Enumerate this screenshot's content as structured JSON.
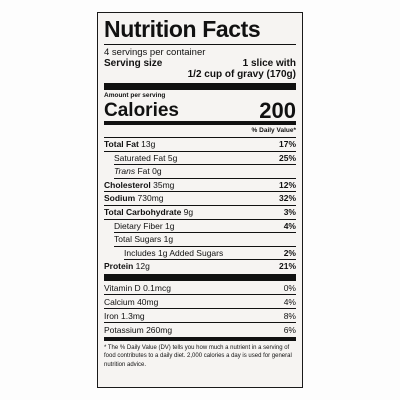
{
  "label": {
    "title": "Nutrition Facts",
    "servings": "4 servings per container",
    "serving_size_label": "Serving size",
    "serving_size_lines": [
      "1 slice with",
      "1/2 cup of gravy (170g)"
    ],
    "amount_per_serving": "Amount per serving",
    "calories_label": "Calories",
    "calories": 200,
    "dv_header": "% Daily Value*",
    "rows": [
      {
        "name": "Total Fat",
        "amount": "13g",
        "dv": "17%",
        "bold": true,
        "indent": 0
      },
      {
        "name": "Saturated Fat",
        "amount": "5g",
        "dv": "25%",
        "bold": false,
        "indent": 1
      },
      {
        "italic": "Trans",
        "name": "Fat",
        "amount": "0g",
        "bold": false,
        "indent": 1
      },
      {
        "name": "Cholesterol",
        "amount": "35mg",
        "dv": "12%",
        "bold": true,
        "indent": 0
      },
      {
        "name": "Sodium",
        "amount": "730mg",
        "dv": "32%",
        "bold": true,
        "indent": 0
      },
      {
        "name": "Total Carbohydrate",
        "amount": "9g",
        "dv": "3%",
        "bold": true,
        "indent": 0
      },
      {
        "name": "Dietary Fiber",
        "amount": "1g",
        "dv": "4%",
        "bold": false,
        "indent": 1
      },
      {
        "name": "Total Sugars",
        "amount": "1g",
        "bold": false,
        "indent": 1
      },
      {
        "name": "Includes 1g Added Sugars",
        "dv": "2%",
        "bold": false,
        "indent": 2
      },
      {
        "name": "Protein",
        "amount": "12g",
        "dv": "21%",
        "bold": true,
        "indent": 0
      }
    ],
    "vitamins": [
      {
        "name": "Vitamin D",
        "amount": "0.1mcg",
        "dv": "0%"
      },
      {
        "name": "Calcium",
        "amount": "40mg",
        "dv": "4%"
      },
      {
        "name": "Iron",
        "amount": "1.3mg",
        "dv": "8%"
      },
      {
        "name": "Potassium",
        "amount": "260mg",
        "dv": "6%"
      }
    ],
    "footnote": "* The % Daily Value (DV) tells you how much a nutrient in a serving of food contributes to a daily diet. 2,000 calories a day is used for general nutrition advice."
  }
}
